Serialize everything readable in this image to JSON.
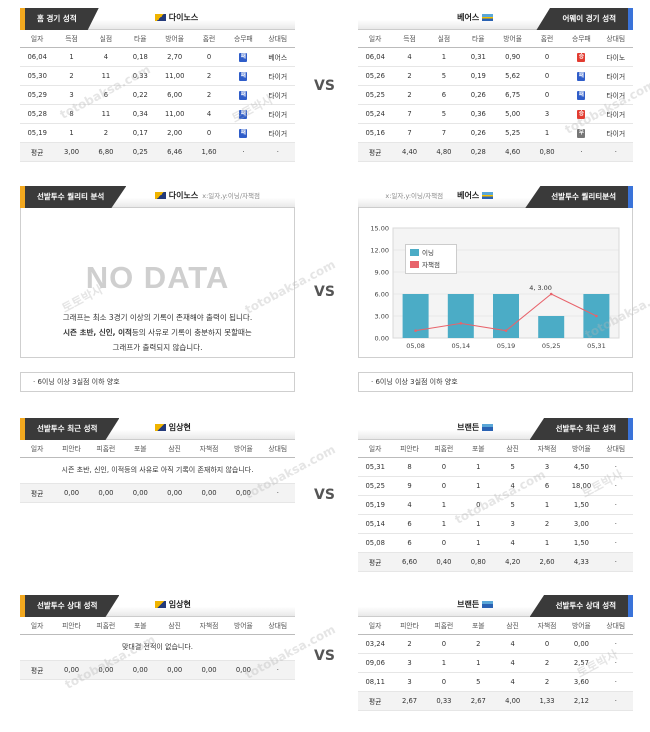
{
  "vs_label": "VS",
  "sec1": {
    "left": {
      "title": "홈 경기 성적",
      "team": "다이노스",
      "cols": [
        "일자",
        "득점",
        "실점",
        "타율",
        "방어율",
        "홈런",
        "승무패",
        "상대팀"
      ],
      "rows": [
        [
          "06,04",
          "1",
          "4",
          "0,18",
          "2,70",
          "0",
          "패",
          "베어스"
        ],
        [
          "05,30",
          "2",
          "11",
          "0,33",
          "11,00",
          "2",
          "패",
          "타이거"
        ],
        [
          "05,29",
          "3",
          "6",
          "0,22",
          "6,00",
          "2",
          "패",
          "타이거"
        ],
        [
          "05,28",
          "8",
          "11",
          "0,34",
          "11,00",
          "4",
          "패",
          "타이거"
        ],
        [
          "05,19",
          "1",
          "2",
          "0,17",
          "2,00",
          "0",
          "패",
          "타이거"
        ]
      ],
      "result_colors": [
        "b",
        "b",
        "b",
        "b",
        "b"
      ],
      "avg": [
        "평균",
        "3,00",
        "6,80",
        "0,25",
        "6,46",
        "1,60",
        "·",
        "·"
      ]
    },
    "right": {
      "title": "어웨이 경기 성적",
      "team": "베어스",
      "cols": [
        "일자",
        "득점",
        "실점",
        "타율",
        "방어율",
        "홈런",
        "승무패",
        "상대팀"
      ],
      "rows": [
        [
          "06,04",
          "4",
          "1",
          "0,31",
          "0,90",
          "0",
          "승",
          "다이노"
        ],
        [
          "05,26",
          "2",
          "5",
          "0,19",
          "5,62",
          "0",
          "패",
          "타이거"
        ],
        [
          "05,25",
          "2",
          "6",
          "0,26",
          "6,75",
          "0",
          "패",
          "타이거"
        ],
        [
          "05,24",
          "7",
          "5",
          "0,36",
          "5,00",
          "3",
          "승",
          "타이거"
        ],
        [
          "05,16",
          "7",
          "7",
          "0,26",
          "5,25",
          "1",
          "무",
          "타이거"
        ]
      ],
      "result_colors": [
        "r",
        "b",
        "b",
        "r",
        "g"
      ],
      "avg": [
        "평균",
        "4,40",
        "4,80",
        "0,28",
        "4,60",
        "0,80",
        "·",
        "·"
      ]
    }
  },
  "sec2": {
    "left": {
      "title": "선발투수 퀄리티 분석",
      "team": "다이노스",
      "sub": "x:일자,y:이닝/자책점",
      "nodata": "NO DATA",
      "msg1": "그래프는 최소 3경기 이상의 기록이 존재해야 출력이 됩니다.",
      "msg2_b": "시즌 초반, 신인, 이적",
      "msg2": "등의 사유로 기록이 충분하지 못할때는",
      "msg3": "그래프가 출력되지 않습니다.",
      "note": "· 6이닝 이상 3실점 이하 양호"
    },
    "right": {
      "title": "선발투수 퀄리티분석",
      "team": "베어스",
      "sub": "x:일자,y:이닝/자책점",
      "note": "· 6이닝 이상 3실점 이하 양호"
    }
  },
  "chart_data": {
    "type": "bar",
    "categories": [
      "05,08",
      "05,14",
      "05,19",
      "05,25",
      "05,31"
    ],
    "series": [
      {
        "name": "이닝",
        "type": "bar",
        "values": [
          6,
          6,
          6,
          3,
          6
        ],
        "color": "#4bacc6"
      },
      {
        "name": "자책점",
        "type": "line",
        "values": [
          1,
          2,
          1,
          6,
          3
        ],
        "color": "#e8636b"
      }
    ],
    "annotation": "4, 3.00",
    "yticks": [
      "15.00",
      "12.00",
      "9.00",
      "6.00",
      "3.00",
      "0.00"
    ],
    "ylim": [
      0,
      15
    ],
    "grid": true,
    "legend": "top-left"
  },
  "sec3": {
    "left": {
      "title": "선발투수 최근 성적",
      "team": "임상현",
      "cols": [
        "일자",
        "피안타",
        "피홈런",
        "포볼",
        "삼진",
        "자책점",
        "방어율",
        "상대팀"
      ],
      "msg": "시즌 초반, 신인, 이적등의 사유로 아직 기록이 존재하지 않습니다.",
      "avg": [
        "평균",
        "0,00",
        "0,00",
        "0,00",
        "0,00",
        "0,00",
        "0,00",
        "·"
      ]
    },
    "right": {
      "title": "선발투수 최근 성적",
      "team": "브랜든",
      "cols": [
        "일자",
        "피안타",
        "피홈런",
        "포볼",
        "삼진",
        "자책점",
        "방어율",
        "상대팀"
      ],
      "rows": [
        [
          "05,31",
          "8",
          "0",
          "1",
          "5",
          "3",
          "4,50",
          "·"
        ],
        [
          "05,25",
          "9",
          "0",
          "1",
          "4",
          "6",
          "18,00",
          "·"
        ],
        [
          "05,19",
          "4",
          "1",
          "0",
          "5",
          "1",
          "1,50",
          "·"
        ],
        [
          "05,14",
          "6",
          "1",
          "1",
          "3",
          "2",
          "3,00",
          "·"
        ],
        [
          "05,08",
          "6",
          "0",
          "1",
          "4",
          "1",
          "1,50",
          "·"
        ]
      ],
      "avg": [
        "평균",
        "6,60",
        "0,40",
        "0,80",
        "4,20",
        "2,60",
        "4,33",
        "·"
      ]
    }
  },
  "sec4": {
    "left": {
      "title": "선발투수 상대 성적",
      "team": "임상현",
      "cols": [
        "일자",
        "피안타",
        "피홈런",
        "포볼",
        "삼진",
        "자책점",
        "방어율",
        "상대팀"
      ],
      "msg": "맞대결 전적이 없습니다.",
      "avg": [
        "평균",
        "0,00",
        "0,00",
        "0,00",
        "0,00",
        "0,00",
        "0,00",
        "·"
      ]
    },
    "right": {
      "title": "선발투수 상대 성적",
      "team": "브랜든",
      "cols": [
        "일자",
        "피안타",
        "피홈런",
        "포볼",
        "삼진",
        "자책점",
        "방어율",
        "상대팀"
      ],
      "rows": [
        [
          "03,24",
          "2",
          "0",
          "2",
          "4",
          "0",
          "0,00",
          "·"
        ],
        [
          "09,06",
          "3",
          "1",
          "1",
          "4",
          "2",
          "2,57",
          "·"
        ],
        [
          "08,11",
          "3",
          "0",
          "5",
          "4",
          "2",
          "3,60",
          "·"
        ]
      ],
      "avg": [
        "평균",
        "2,67",
        "0,33",
        "2,67",
        "4,00",
        "1,33",
        "2,12",
        "·"
      ]
    }
  },
  "watermarks": [
    "토토박사",
    "totobaksa.com"
  ]
}
